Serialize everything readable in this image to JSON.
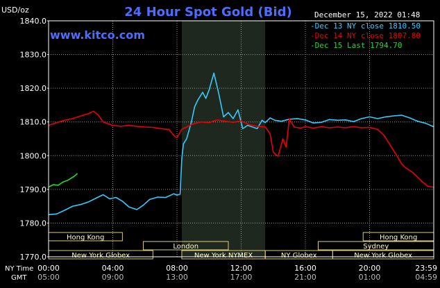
{
  "header": {
    "unit": "USD/oz",
    "title": "24 Hour Spot Gold (Bid)",
    "timestamp": "December 15, 2022 01:48",
    "website": "www.kitco.com"
  },
  "colors": {
    "background": "#000000",
    "frame": "#ffffff",
    "grid": "#9a9a9a",
    "shade": "#1f281f",
    "title": "#4d6dff",
    "website": "#4d6dff",
    "dec13": "#33ccff",
    "dec14": "#ee0000",
    "dec15": "#22dd22",
    "session_bar": "#ffffcc",
    "session_border": "#ddcc77",
    "text": "#ffffff"
  },
  "axes": {
    "x_row1_label": "NY Time",
    "x_row2_label": "GMT",
    "ny_ticks": [
      "00:00",
      "04:00",
      "08:00",
      "12:00",
      "16:00",
      "20:00",
      "23:59"
    ],
    "gmt_ticks": [
      "05:00",
      "09:00",
      "13:00",
      "17:00",
      "21:00",
      "01:00",
      "04:59"
    ]
  },
  "sessions": {
    "row1": [
      {
        "label": "Hong Kong",
        "start": 0.0,
        "end": 4.6
      },
      {
        "label": "Hong Kong",
        "start": 19.6,
        "end": 24.0
      }
    ],
    "row2": [
      {
        "label": "London",
        "start": 5.9,
        "end": 11.2
      },
      {
        "label": "Sydney",
        "start": 16.8,
        "end": 24.0
      }
    ],
    "row3": [
      {
        "label": "New York Globex",
        "start": 0.0,
        "end": 6.5
      },
      {
        "label": "New York NYMEX",
        "start": 8.3,
        "end": 13.5
      },
      {
        "label": "NY Globex",
        "start": 13.5,
        "end": 17.7
      },
      {
        "label": "New York Globex",
        "start": 17.7,
        "end": 24.0
      }
    ]
  },
  "chart_data": {
    "type": "line",
    "title": "24 Hour Spot Gold (Bid)",
    "ylabel": "USD/oz",
    "xlabel": "NY Time",
    "ylim": [
      1770,
      1840
    ],
    "xlim": [
      0,
      24
    ],
    "y_ticks": [
      1770,
      1780,
      1790,
      1800,
      1810,
      1820,
      1830,
      1840
    ],
    "y_tick_labels": [
      "1770.0",
      "1780.0",
      "1790.0",
      "1800.0",
      "1810.0",
      "1820.0",
      "1830.0",
      "1840.0"
    ],
    "x_unit": "hours (NY time)",
    "shaded_range": [
      8.3,
      13.5
    ],
    "grid": true,
    "legend_position": "top-right",
    "series": [
      {
        "name": "Dec 13 NY close 1810.50",
        "color": "#33ccff",
        "points": [
          [
            0.0,
            1782.5
          ],
          [
            0.5,
            1782.7
          ],
          [
            1.0,
            1783.8
          ],
          [
            1.5,
            1785.0
          ],
          [
            2.0,
            1785.5
          ],
          [
            2.5,
            1786.3
          ],
          [
            3.0,
            1787.5
          ],
          [
            3.4,
            1788.4
          ],
          [
            3.8,
            1787.2
          ],
          [
            4.2,
            1787.6
          ],
          [
            4.6,
            1786.5
          ],
          [
            5.0,
            1784.8
          ],
          [
            5.5,
            1784.0
          ],
          [
            5.9,
            1785.3
          ],
          [
            6.3,
            1787.0
          ],
          [
            6.8,
            1787.7
          ],
          [
            7.3,
            1787.6
          ],
          [
            7.8,
            1788.7
          ],
          [
            8.0,
            1788.3
          ],
          [
            8.2,
            1788.6
          ],
          [
            8.3,
            1799.0
          ],
          [
            8.4,
            1803.5
          ],
          [
            8.6,
            1805.0
          ],
          [
            8.9,
            1810.0
          ],
          [
            9.1,
            1814.5
          ],
          [
            9.3,
            1816.5
          ],
          [
            9.6,
            1818.8
          ],
          [
            9.8,
            1817.0
          ],
          [
            10.0,
            1819.5
          ],
          [
            10.3,
            1824.5
          ],
          [
            10.6,
            1818.5
          ],
          [
            10.9,
            1811.5
          ],
          [
            11.2,
            1812.8
          ],
          [
            11.5,
            1811.0
          ],
          [
            11.8,
            1813.6
          ],
          [
            12.1,
            1808.0
          ],
          [
            12.4,
            1809.0
          ],
          [
            12.7,
            1808.5
          ],
          [
            13.0,
            1808.0
          ],
          [
            13.3,
            1810.5
          ],
          [
            13.5,
            1809.8
          ],
          [
            13.8,
            1811.2
          ],
          [
            14.1,
            1810.5
          ],
          [
            14.5,
            1810.2
          ],
          [
            15.0,
            1810.8
          ],
          [
            15.5,
            1811.0
          ],
          [
            16.0,
            1810.6
          ],
          [
            16.5,
            1809.7
          ],
          [
            17.0,
            1809.9
          ],
          [
            17.5,
            1810.7
          ],
          [
            18.0,
            1810.5
          ],
          [
            18.5,
            1810.6
          ],
          [
            19.0,
            1810.1
          ],
          [
            19.5,
            1811.0
          ],
          [
            20.0,
            1811.5
          ],
          [
            20.5,
            1811.0
          ],
          [
            21.0,
            1811.5
          ],
          [
            21.5,
            1811.8
          ],
          [
            22.0,
            1812.0
          ],
          [
            22.5,
            1811.2
          ],
          [
            23.0,
            1810.2
          ],
          [
            23.5,
            1809.6
          ],
          [
            23.98,
            1808.6
          ]
        ]
      },
      {
        "name": "Dec 14 NY close 1807.80",
        "color": "#ee0000",
        "points": [
          [
            0.0,
            1809.0
          ],
          [
            0.5,
            1809.8
          ],
          [
            1.0,
            1810.5
          ],
          [
            1.5,
            1811.0
          ],
          [
            2.0,
            1811.8
          ],
          [
            2.5,
            1812.5
          ],
          [
            2.8,
            1813.2
          ],
          [
            3.1,
            1812.0
          ],
          [
            3.4,
            1810.0
          ],
          [
            4.0,
            1809.0
          ],
          [
            4.5,
            1808.7
          ],
          [
            5.0,
            1809.0
          ],
          [
            5.5,
            1808.7
          ],
          [
            6.0,
            1808.5
          ],
          [
            6.5,
            1808.4
          ],
          [
            7.0,
            1808.0
          ],
          [
            7.5,
            1807.8
          ],
          [
            7.8,
            1806.0
          ],
          [
            8.0,
            1805.3
          ],
          [
            8.3,
            1807.8
          ],
          [
            8.6,
            1808.5
          ],
          [
            9.0,
            1809.4
          ],
          [
            9.5,
            1810.0
          ],
          [
            10.0,
            1809.8
          ],
          [
            10.5,
            1810.6
          ],
          [
            11.0,
            1810.2
          ],
          [
            11.5,
            1809.9
          ],
          [
            12.0,
            1810.3
          ],
          [
            12.5,
            1809.2
          ],
          [
            13.0,
            1808.7
          ],
          [
            13.5,
            1808.5
          ],
          [
            13.8,
            1806.5
          ],
          [
            14.0,
            1801.0
          ],
          [
            14.3,
            1799.8
          ],
          [
            14.6,
            1805.0
          ],
          [
            14.8,
            1802.5
          ],
          [
            15.0,
            1811.0
          ],
          [
            15.3,
            1808.5
          ],
          [
            15.7,
            1808.2
          ],
          [
            16.0,
            1808.6
          ],
          [
            16.5,
            1808.2
          ],
          [
            17.0,
            1808.6
          ],
          [
            17.5,
            1808.3
          ],
          [
            18.0,
            1808.5
          ],
          [
            18.5,
            1808.3
          ],
          [
            19.0,
            1808.6
          ],
          [
            19.5,
            1808.3
          ],
          [
            20.0,
            1808.4
          ],
          [
            20.5,
            1807.8
          ],
          [
            20.9,
            1806.0
          ],
          [
            21.3,
            1803.0
          ],
          [
            21.7,
            1800.0
          ],
          [
            22.0,
            1797.5
          ],
          [
            22.3,
            1796.2
          ],
          [
            22.7,
            1795.0
          ],
          [
            23.0,
            1793.6
          ],
          [
            23.3,
            1792.2
          ],
          [
            23.6,
            1791.0
          ],
          [
            23.98,
            1790.6
          ]
        ]
      },
      {
        "name": "Dec 15 Last 1794.70",
        "color": "#22dd22",
        "points": [
          [
            0.0,
            1790.7
          ],
          [
            0.3,
            1791.4
          ],
          [
            0.6,
            1791.2
          ],
          [
            0.9,
            1792.2
          ],
          [
            1.2,
            1792.7
          ],
          [
            1.4,
            1793.3
          ],
          [
            1.6,
            1793.9
          ],
          [
            1.8,
            1794.7
          ]
        ]
      }
    ]
  }
}
